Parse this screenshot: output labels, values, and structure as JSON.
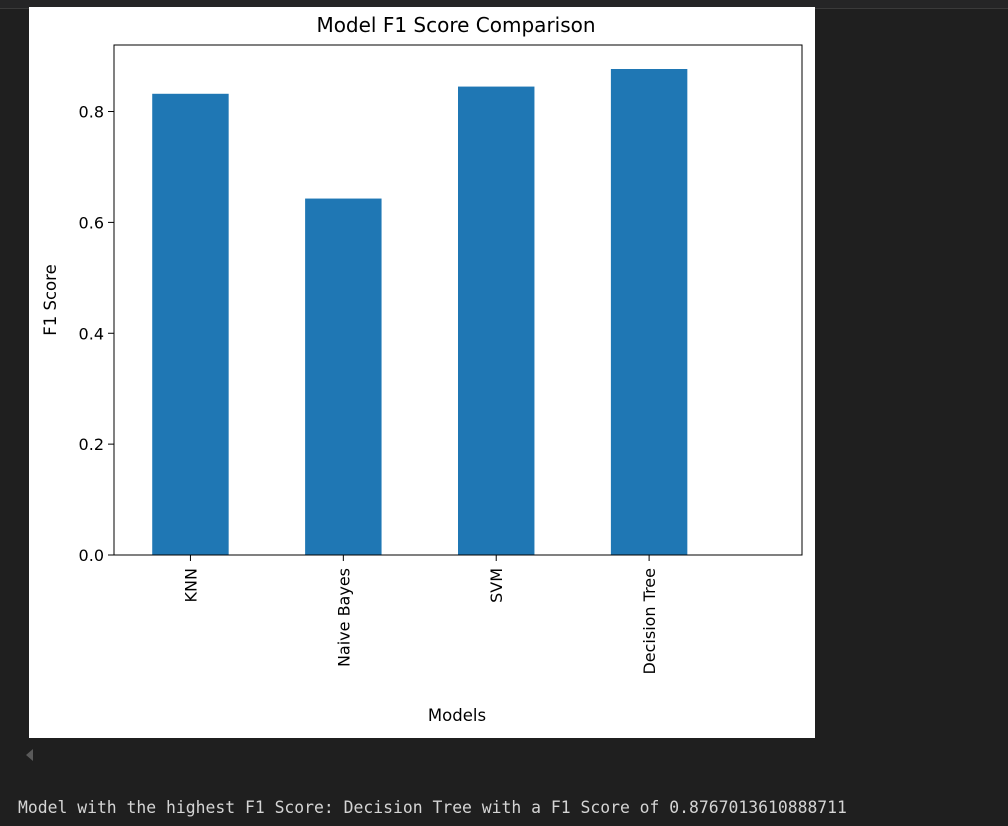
{
  "chart_data": {
    "type": "bar",
    "title": "Model F1 Score Comparison",
    "xlabel": "Models",
    "ylabel": "F1 Score",
    "categories": [
      "KNN",
      "Naive Bayes",
      "SVM",
      "Decision Tree"
    ],
    "values": [
      0.832,
      0.643,
      0.845,
      0.8767013610888711
    ],
    "ylim": [
      0,
      0.92
    ],
    "yticks": [
      0.0,
      0.2,
      0.4,
      0.6,
      0.8
    ],
    "ytick_labels": [
      "0.0",
      "0.2",
      "0.4",
      "0.6",
      "0.8"
    ],
    "bar_color": "#1f77b4",
    "grid": false,
    "xtick_rotation": "vertical"
  },
  "output": {
    "text": "Model with the highest F1 Score: Decision Tree with a F1 Score of 0.8767013610888711"
  },
  "colors": {
    "page_background": "#1f1f1f",
    "figure_background": "#ffffff",
    "output_text": "#d4d4d4"
  }
}
